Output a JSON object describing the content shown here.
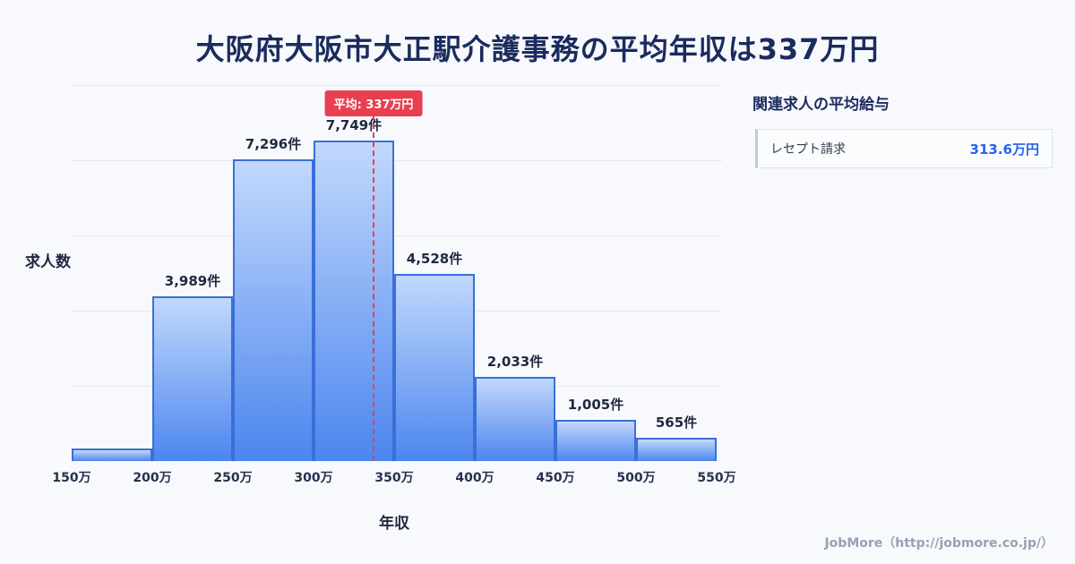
{
  "page": {
    "title": "大阪府大阪市大正駅介護事務の平均年収は337万円",
    "footer": "JobMore（http://jobmore.co.jp/）"
  },
  "chart_data": {
    "type": "bar",
    "title": "大阪府大阪市大正駅介護事務の平均年収は337万円",
    "xlabel": "年収",
    "ylabel": "求人数",
    "x_ticks": [
      "150万",
      "200万",
      "250万",
      "300万",
      "350万",
      "400万",
      "450万",
      "500万",
      "550万"
    ],
    "bin_edges": [
      150,
      200,
      250,
      300,
      350,
      400,
      450,
      500,
      550
    ],
    "values": [
      300,
      3989,
      7296,
      7749,
      4528,
      2033,
      1005,
      565
    ],
    "bar_labels": [
      "",
      "3,989件",
      "7,296件",
      "7,749件",
      "4,528件",
      "2,033件",
      "1,005件",
      "565件"
    ],
    "average": 337,
    "average_label": "平均: 337万円",
    "x_range": [
      150,
      550
    ],
    "ylim": [
      0,
      9100
    ],
    "grid": "horizontal",
    "legend": "none",
    "colors": {
      "bar_top": "#c2d8fc",
      "bar_bottom": "#4c86ef",
      "bar_border": "#3a6fd8",
      "average_line": "#e8404f",
      "title": "#1c2b5e",
      "value_accent": "#2563eb"
    }
  },
  "side_panel": {
    "heading": "関連求人の平均給与",
    "items": [
      {
        "label": "レセプト請求",
        "value": "313.6万円"
      }
    ]
  }
}
